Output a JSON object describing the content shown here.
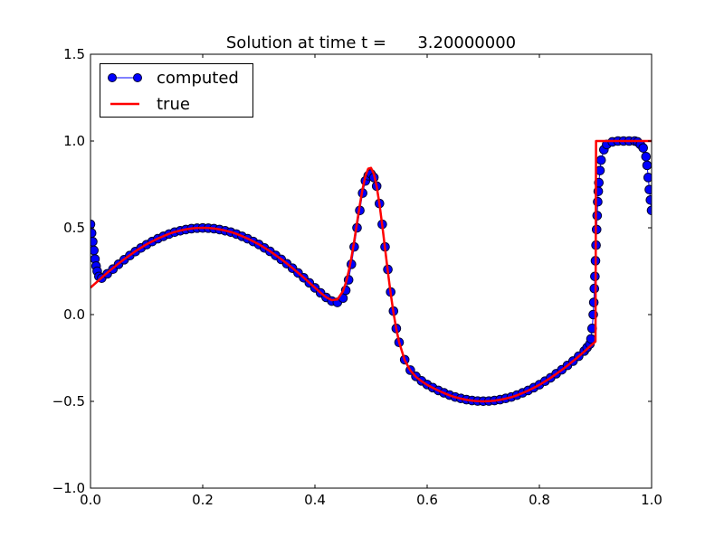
{
  "chart_data": {
    "type": "line",
    "title": "Solution at time t =      3.20000000",
    "xlabel": "",
    "ylabel": "",
    "xlim": [
      0.0,
      1.0
    ],
    "ylim": [
      -1.0,
      1.5
    ],
    "xticks": [
      "0.0",
      "0.2",
      "0.4",
      "0.6",
      "0.8",
      "1.0"
    ],
    "yticks": [
      "−1.0",
      "−0.5",
      "0.0",
      "0.5",
      "1.0",
      "1.5"
    ],
    "xtick_values": [
      0.0,
      0.2,
      0.4,
      0.6,
      0.8,
      1.0
    ],
    "ytick_values": [
      -1.0,
      -0.5,
      0.0,
      0.5,
      1.0,
      1.5
    ],
    "grid": false,
    "legend_position": "top-left",
    "series": [
      {
        "name": "computed",
        "style": "line-with-circle-markers",
        "color": "#0000ff",
        "marker_edge_color": "#000033",
        "x": [
          0,
          0.002,
          0.004,
          0.006,
          0.008,
          0.01,
          0.012,
          0.015,
          0.02,
          0.03,
          0.04,
          0.05,
          0.06,
          0.07,
          0.08,
          0.09,
          0.1,
          0.11,
          0.12,
          0.13,
          0.14,
          0.15,
          0.16,
          0.17,
          0.18,
          0.19,
          0.2,
          0.21,
          0.22,
          0.23,
          0.24,
          0.25,
          0.26,
          0.27,
          0.28,
          0.29,
          0.3,
          0.31,
          0.32,
          0.33,
          0.34,
          0.35,
          0.36,
          0.37,
          0.38,
          0.39,
          0.4,
          0.41,
          0.42,
          0.43,
          0.44,
          0.45,
          0.455,
          0.46,
          0.465,
          0.47,
          0.475,
          0.48,
          0.485,
          0.49,
          0.495,
          0.5,
          0.505,
          0.51,
          0.515,
          0.52,
          0.525,
          0.53,
          0.535,
          0.54,
          0.545,
          0.55,
          0.56,
          0.57,
          0.58,
          0.59,
          0.6,
          0.61,
          0.62,
          0.63,
          0.64,
          0.65,
          0.66,
          0.67,
          0.68,
          0.69,
          0.7,
          0.71,
          0.72,
          0.73,
          0.74,
          0.75,
          0.76,
          0.77,
          0.78,
          0.79,
          0.8,
          0.81,
          0.82,
          0.83,
          0.84,
          0.85,
          0.86,
          0.87,
          0.88,
          0.885,
          0.89,
          0.892,
          0.894,
          0.896,
          0.897,
          0.898,
          0.899,
          0.9,
          0.901,
          0.902,
          0.903,
          0.904,
          0.905,
          0.906,
          0.908,
          0.91,
          0.915,
          0.92,
          0.93,
          0.94,
          0.95,
          0.96,
          0.97,
          0.975,
          0.98,
          0.985,
          0.99,
          0.992,
          0.994,
          0.996,
          0.998,
          1.0
        ],
        "y": [
          0.52,
          0.47,
          0.42,
          0.37,
          0.32,
          0.28,
          0.25,
          0.22,
          0.21,
          0.235,
          0.262,
          0.29,
          0.316,
          0.34,
          0.363,
          0.384,
          0.403,
          0.421,
          0.437,
          0.451,
          0.464,
          0.475,
          0.483,
          0.49,
          0.495,
          0.498,
          0.499,
          0.498,
          0.495,
          0.49,
          0.483,
          0.475,
          0.464,
          0.451,
          0.437,
          0.421,
          0.404,
          0.384,
          0.364,
          0.341,
          0.318,
          0.293,
          0.267,
          0.24,
          0.212,
          0.183,
          0.154,
          0.125,
          0.099,
          0.078,
          0.07,
          0.095,
          0.14,
          0.2,
          0.29,
          0.39,
          0.5,
          0.6,
          0.7,
          0.77,
          0.8,
          0.81,
          0.79,
          0.74,
          0.64,
          0.52,
          0.39,
          0.26,
          0.13,
          0.02,
          -0.08,
          -0.16,
          -0.26,
          -0.32,
          -0.356,
          -0.382,
          -0.403,
          -0.421,
          -0.437,
          -0.451,
          -0.464,
          -0.475,
          -0.483,
          -0.49,
          -0.495,
          -0.498,
          -0.499,
          -0.498,
          -0.495,
          -0.49,
          -0.483,
          -0.475,
          -0.464,
          -0.451,
          -0.437,
          -0.421,
          -0.404,
          -0.384,
          -0.364,
          -0.341,
          -0.318,
          -0.293,
          -0.268,
          -0.24,
          -0.21,
          -0.19,
          -0.17,
          -0.14,
          -0.08,
          0.0,
          0.07,
          0.15,
          0.22,
          0.31,
          0.4,
          0.49,
          0.57,
          0.65,
          0.71,
          0.76,
          0.83,
          0.89,
          0.95,
          0.98,
          0.995,
          1.0,
          1.0,
          1.0,
          1.0,
          0.995,
          0.98,
          0.96,
          0.91,
          0.86,
          0.79,
          0.72,
          0.66,
          0.6
        ]
      },
      {
        "name": "true",
        "style": "line",
        "color": "#ff0000",
        "x": [
          0,
          0.01,
          0.02,
          0.03,
          0.04,
          0.05,
          0.06,
          0.07,
          0.08,
          0.09,
          0.1,
          0.11,
          0.12,
          0.13,
          0.14,
          0.15,
          0.16,
          0.17,
          0.18,
          0.19,
          0.2,
          0.21,
          0.22,
          0.23,
          0.24,
          0.25,
          0.26,
          0.27,
          0.28,
          0.29,
          0.3,
          0.31,
          0.32,
          0.33,
          0.34,
          0.35,
          0.36,
          0.37,
          0.38,
          0.39,
          0.4,
          0.41,
          0.42,
          0.43,
          0.44,
          0.45,
          0.455,
          0.46,
          0.465,
          0.47,
          0.475,
          0.48,
          0.485,
          0.49,
          0.495,
          0.5,
          0.505,
          0.51,
          0.515,
          0.52,
          0.525,
          0.53,
          0.535,
          0.54,
          0.545,
          0.55,
          0.56,
          0.57,
          0.58,
          0.59,
          0.6,
          0.61,
          0.62,
          0.63,
          0.64,
          0.65,
          0.66,
          0.67,
          0.68,
          0.69,
          0.7,
          0.71,
          0.72,
          0.73,
          0.74,
          0.75,
          0.76,
          0.77,
          0.78,
          0.79,
          0.8,
          0.81,
          0.82,
          0.83,
          0.84,
          0.85,
          0.86,
          0.87,
          0.88,
          0.89,
          0.9,
          0.901,
          1.0
        ],
        "y": [
          0.155,
          0.184,
          0.213,
          0.241,
          0.268,
          0.294,
          0.319,
          0.342,
          0.365,
          0.385,
          0.405,
          0.422,
          0.438,
          0.452,
          0.465,
          0.476,
          0.484,
          0.491,
          0.496,
          0.499,
          0.5,
          0.499,
          0.496,
          0.491,
          0.484,
          0.476,
          0.465,
          0.452,
          0.438,
          0.422,
          0.405,
          0.385,
          0.365,
          0.342,
          0.319,
          0.294,
          0.268,
          0.241,
          0.213,
          0.184,
          0.155,
          0.126,
          0.1,
          0.083,
          0.087,
          0.135,
          0.182,
          0.247,
          0.328,
          0.424,
          0.529,
          0.632,
          0.726,
          0.799,
          0.841,
          0.845,
          0.811,
          0.739,
          0.637,
          0.513,
          0.38,
          0.246,
          0.121,
          0.01,
          -0.083,
          -0.159,
          -0.263,
          -0.322,
          -0.359,
          -0.384,
          -0.405,
          -0.422,
          -0.438,
          -0.452,
          -0.465,
          -0.476,
          -0.484,
          -0.491,
          -0.496,
          -0.499,
          -0.5,
          -0.499,
          -0.496,
          -0.491,
          -0.484,
          -0.476,
          -0.465,
          -0.452,
          -0.438,
          -0.422,
          -0.405,
          -0.385,
          -0.365,
          -0.342,
          -0.319,
          -0.294,
          -0.268,
          -0.241,
          -0.213,
          -0.184,
          -0.155,
          1.0,
          1.0
        ]
      }
    ]
  }
}
